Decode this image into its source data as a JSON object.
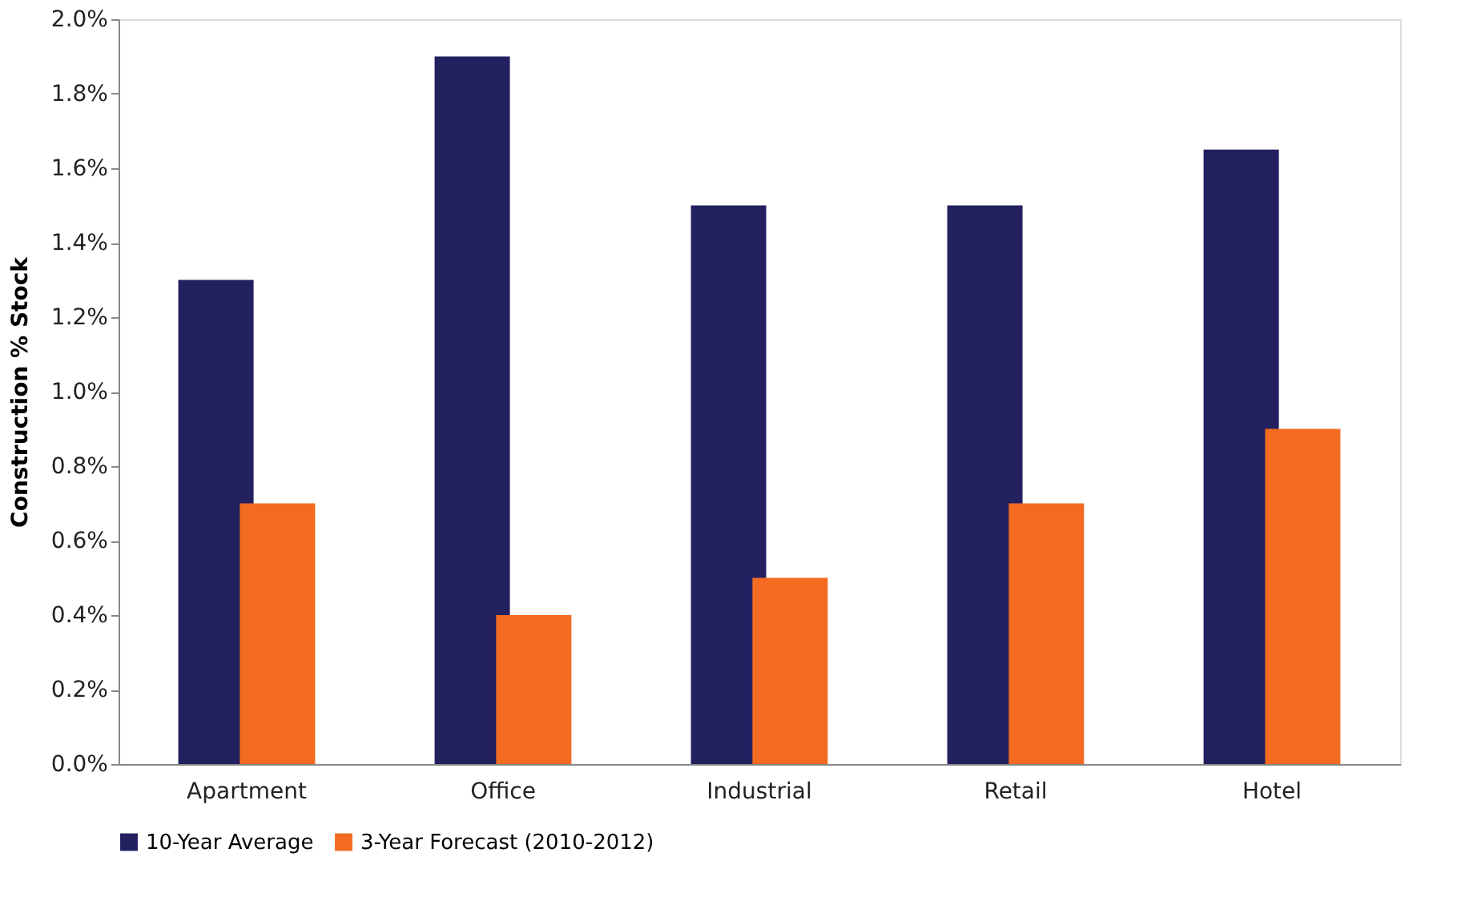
{
  "chart_data": {
    "type": "bar",
    "ylabel": "Construction % Stock",
    "categories": [
      "Apartment",
      "Office",
      "Industrial",
      "Retail",
      "Hotel"
    ],
    "series": [
      {
        "name": "10-Year Average",
        "color": "#22205f",
        "values": [
          1.3,
          1.9,
          1.5,
          1.5,
          1.65
        ]
      },
      {
        "name": "3-Year Forecast (2010-2012)",
        "color": "#f26b21",
        "values": [
          0.7,
          0.4,
          0.5,
          0.7,
          0.9
        ]
      }
    ],
    "ylim": [
      0,
      2.0
    ],
    "yticks": [
      {
        "value": 0,
        "label": "0.0%"
      },
      {
        "value": 0.2,
        "label": "0.2%"
      },
      {
        "value": 0.4,
        "label": "0.4%"
      },
      {
        "value": 0.6,
        "label": "0.6%"
      },
      {
        "value": 0.8,
        "label": "0.8%"
      },
      {
        "value": 1.0,
        "label": "1.0%"
      },
      {
        "value": 1.2,
        "label": "1.2%"
      },
      {
        "value": 1.4,
        "label": "1.4%"
      },
      {
        "value": 1.6,
        "label": "1.6%"
      },
      {
        "value": 1.8,
        "label": "1.8%"
      },
      {
        "value": 2.0,
        "label": "2.0%"
      }
    ],
    "grid": false,
    "legend": "bottom"
  }
}
